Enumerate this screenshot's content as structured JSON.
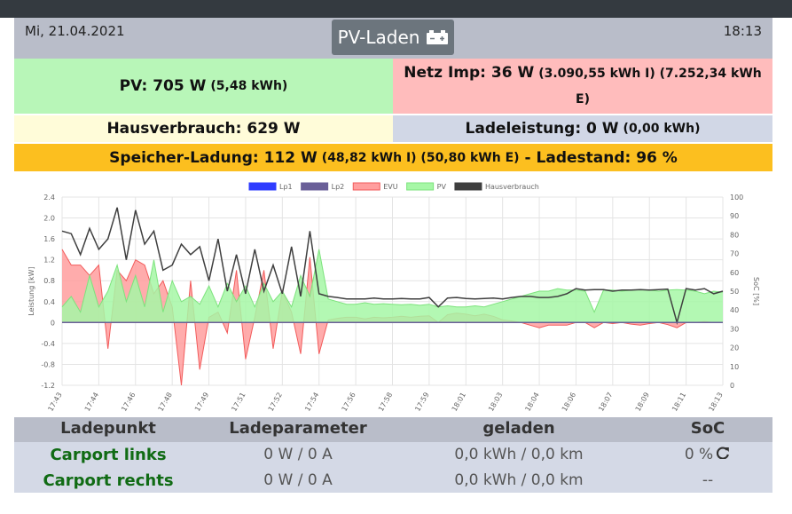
{
  "header": {
    "date": "Mi, 21.04.2021",
    "button": "PV-Laden",
    "time": "18:13"
  },
  "summary": {
    "pv": {
      "main": "PV: 705 W",
      "detail": "(5,48 kWh)"
    },
    "netz": {
      "main": "Netz Imp: 36 W",
      "detail": "(3.090,55 kWh I) (7.252,34 kWh E)"
    },
    "haus": {
      "main": "Hausverbrauch: 629 W"
    },
    "lade": {
      "main": "Ladeleistung: 0 W",
      "detail": "(0,00 kWh)"
    },
    "speicher": {
      "main": "Speicher-Ladung: 112 W",
      "detail": "(48,82 kWh I) (50,80 kWh E)",
      "soc": "- Ladestand: 96 %"
    }
  },
  "chart_data": {
    "type": "line",
    "ylabel": "Leistung [kW]",
    "y2label": "SoC [%]",
    "categories": [
      "17:43",
      null,
      null,
      null,
      "17:44",
      null,
      null,
      null,
      "17:46",
      null,
      null,
      null,
      "17:48",
      null,
      null,
      null,
      "17:49",
      null,
      null,
      null,
      "17:51",
      null,
      null,
      null,
      "17:52",
      null,
      null,
      null,
      "17:54",
      null,
      null,
      null,
      "17:56",
      null,
      null,
      null,
      "17:58",
      null,
      null,
      null,
      "17:59",
      null,
      null,
      null,
      "18:01",
      null,
      null,
      null,
      "18:03",
      null,
      null,
      null,
      "18:04",
      null,
      null,
      null,
      "18:06",
      null,
      null,
      null,
      "18:07",
      null,
      null,
      null,
      "18:09",
      null,
      null,
      null,
      "18:11",
      null,
      null,
      null,
      "18:13"
    ],
    "ylim": [
      -1.2,
      2.4
    ],
    "yticks": [
      -1.2,
      -0.8,
      -0.4,
      0,
      0.4,
      0.8,
      1.2,
      1.6,
      {
        "value": 2,
        "label": "2.0"
      },
      2.4
    ],
    "y2lim": [
      0,
      100
    ],
    "y2ticks": [
      0,
      10,
      20,
      30,
      40,
      50,
      60,
      70,
      80,
      90,
      100
    ],
    "grid": true,
    "legend": "top",
    "series": [
      {
        "name": "Lp1",
        "color": "#2f3cff",
        "values": [
          0,
          0,
          0,
          0,
          0,
          0,
          0,
          0,
          0,
          0,
          0,
          0,
          0,
          0,
          0,
          0,
          0,
          0,
          0,
          0,
          0,
          0,
          0,
          0,
          0,
          0,
          0,
          0,
          0,
          0,
          0,
          0,
          0,
          0,
          0,
          0,
          0,
          0,
          0,
          0,
          0,
          0,
          0,
          0,
          0,
          0,
          0,
          0,
          0,
          0,
          0,
          0,
          0,
          0,
          0,
          0,
          0,
          0,
          0,
          0,
          0,
          0,
          0,
          0,
          0,
          0,
          0,
          0,
          0,
          0,
          0,
          0,
          0
        ]
      },
      {
        "name": "Lp2",
        "color": "#6a5f98",
        "values": [
          0,
          0,
          0,
          0,
          0,
          0,
          0,
          0,
          0,
          0,
          0,
          0,
          0,
          0,
          0,
          0,
          0,
          0,
          0,
          0,
          0,
          0,
          0,
          0,
          0,
          0,
          0,
          0,
          0,
          0,
          0,
          0,
          0,
          0,
          0,
          0,
          0,
          0,
          0,
          0,
          0,
          0,
          0,
          0,
          0,
          0,
          0,
          0,
          0,
          0,
          0,
          0,
          0,
          0,
          0,
          0,
          0,
          0,
          0,
          0,
          0,
          0,
          0,
          0,
          0,
          0,
          0,
          0,
          0,
          0,
          0,
          0,
          0
        ]
      },
      {
        "name": "EVU",
        "color": "#f25b5b",
        "fill": "#ff9e9e",
        "values": [
          1.4,
          1.1,
          1.1,
          0.9,
          1.1,
          -0.5,
          1.0,
          0.8,
          1.2,
          1.1,
          0.55,
          0.8,
          0.3,
          -1.2,
          0.8,
          -0.9,
          0.1,
          0.2,
          -0.2,
          1.0,
          -0.7,
          0.1,
          1.0,
          -0.5,
          0.6,
          0.2,
          -0.6,
          1.25,
          -0.6,
          0.05,
          0.08,
          0.1,
          0.1,
          0.07,
          0.1,
          0.09,
          0.1,
          0.12,
          0.1,
          0.12,
          0.13,
          0.0,
          0.15,
          0.18,
          0.16,
          0.13,
          0.16,
          0.12,
          0.05,
          0.03,
          0.0,
          -0.05,
          -0.1,
          -0.05,
          -0.05,
          -0.05,
          0.0,
          0.0,
          -0.1,
          0.0,
          -0.02,
          0.0,
          -0.03,
          -0.05,
          -0.02,
          0.0,
          -0.04,
          -0.1,
          0.0,
          0.0,
          0.02,
          0.0,
          0.0
        ]
      },
      {
        "name": "PV",
        "color": "#7de37d",
        "fill": "#a6f7a6",
        "values": [
          0.3,
          0.5,
          0.2,
          0.9,
          0.3,
          0.6,
          1.1,
          0.4,
          0.9,
          0.3,
          1.2,
          0.2,
          0.8,
          0.4,
          0.5,
          0.35,
          0.7,
          0.3,
          0.75,
          0.4,
          0.7,
          0.3,
          0.75,
          0.4,
          0.6,
          0.3,
          0.9,
          0.5,
          1.4,
          0.45,
          0.4,
          0.35,
          0.35,
          0.38,
          0.35,
          0.36,
          0.35,
          0.34,
          0.35,
          0.33,
          0.35,
          0.3,
          0.32,
          0.3,
          0.3,
          0.32,
          0.3,
          0.35,
          0.4,
          0.45,
          0.5,
          0.55,
          0.6,
          0.6,
          0.65,
          0.62,
          0.62,
          0.6,
          0.2,
          0.62,
          0.62,
          0.6,
          0.62,
          0.63,
          0.62,
          0.6,
          0.62,
          0.63,
          0.62,
          0.6,
          0.55,
          0.6,
          0.58
        ]
      },
      {
        "name": "Hausverbrauch",
        "color": "#3f3f3f",
        "values": [
          1.75,
          1.7,
          1.3,
          1.8,
          1.4,
          1.6,
          2.2,
          1.2,
          2.15,
          1.5,
          1.75,
          1.0,
          1.1,
          1.5,
          1.3,
          1.45,
          0.8,
          1.6,
          0.6,
          1.3,
          0.55,
          1.4,
          0.6,
          1.1,
          0.55,
          1.45,
          0.5,
          1.75,
          0.55,
          0.5,
          0.48,
          0.45,
          0.45,
          0.45,
          0.47,
          0.45,
          0.45,
          0.46,
          0.45,
          0.45,
          0.48,
          0.3,
          0.47,
          0.48,
          0.46,
          0.45,
          0.46,
          0.47,
          0.45,
          0.48,
          0.5,
          0.5,
          0.48,
          0.48,
          0.5,
          0.55,
          0.65,
          0.62,
          0.63,
          0.63,
          0.6,
          0.62,
          0.62,
          0.63,
          0.62,
          0.63,
          0.64,
          0.0,
          0.65,
          0.62,
          0.65,
          0.55,
          0.6
        ]
      }
    ]
  },
  "table": {
    "header": [
      "Ladepunkt",
      "Ladeparameter",
      "geladen",
      "SoC"
    ],
    "rows": [
      [
        "Carport links",
        "0 W / 0 A",
        "0,0 kWh / 0,0 km",
        "0 %"
      ],
      [
        "Carport rechts",
        "0 W / 0 A",
        "0,0 kWh / 0,0 km",
        "--"
      ]
    ]
  }
}
